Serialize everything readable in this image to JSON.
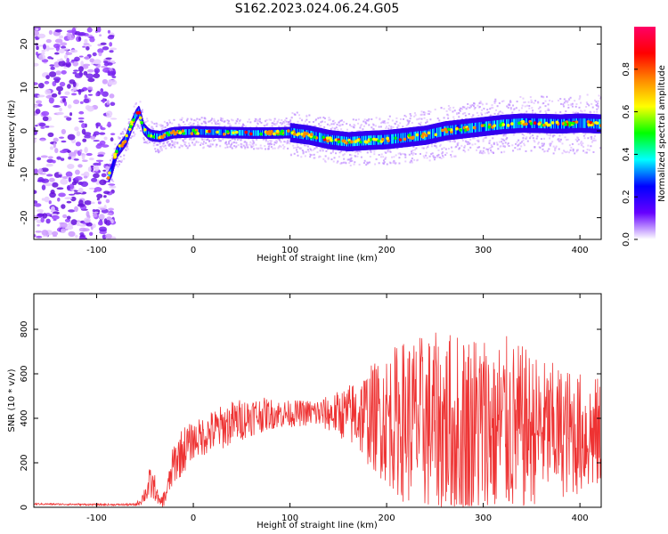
{
  "title": "S162.2023.024.06.24.G05",
  "chart_data": [
    {
      "type": "heatmap",
      "xlabel": "Height of straight line (km)",
      "ylabel": "Frequency (Hz)",
      "xlim": [
        -165,
        422
      ],
      "ylim": [
        -25,
        24
      ],
      "xticks": [
        -100,
        0,
        100,
        200,
        300,
        400
      ],
      "yticks": [
        -20,
        -10,
        0,
        10,
        20
      ],
      "colorbar": {
        "label": "Normalized spectral amplitude",
        "range": [
          0,
          1
        ],
        "ticks": [
          "0.0",
          "0.2",
          "0.4",
          "0.6",
          "0.8"
        ],
        "colormap": [
          "#ff0066",
          "#ff0000",
          "#ff8800",
          "#ffff00",
          "#00ff00",
          "#00ffff",
          "#0000ff",
          "#6600ff",
          "#ffffff"
        ]
      },
      "ridge": {
        "x": [
          -88,
          -85,
          -80,
          -75,
          -70,
          -65,
          -60,
          -57,
          -55,
          -52,
          -48,
          -45,
          -40,
          -35,
          -30,
          -25,
          -20,
          -10,
          0,
          20,
          40,
          60,
          80,
          100,
          120,
          140,
          160,
          180,
          200,
          220,
          240,
          260,
          280,
          300,
          320,
          340,
          360,
          380,
          400,
          420
        ],
        "y": [
          -10.5,
          -9,
          -5,
          -3.5,
          -2,
          1,
          3.5,
          4.5,
          3,
          0.5,
          -0.5,
          -1,
          -1.2,
          -1.3,
          -1,
          -0.6,
          -0.4,
          -0.3,
          -0.2,
          -0.3,
          -0.4,
          -0.5,
          -0.5,
          -0.4,
          -1,
          -2,
          -2.5,
          -2.2,
          -2,
          -1.5,
          -1,
          0,
          0.5,
          1,
          1.5,
          1.8,
          1.7,
          1.6,
          1.8,
          1.6
        ]
      }
    },
    {
      "type": "line",
      "xlabel": "Height of straight line (km)",
      "ylabel": "SNR (10 * v/v)",
      "xlim": [
        -165,
        422
      ],
      "ylim": [
        0,
        960
      ],
      "xticks": [
        -100,
        0,
        100,
        200,
        300,
        400
      ],
      "yticks": [
        0,
        200,
        400,
        600,
        800
      ],
      "color": "#ee3333",
      "envelope": {
        "x": [
          -165,
          -100,
          -60,
          -55,
          -50,
          -45,
          -40,
          -35,
          -30,
          -25,
          -20,
          -10,
          0,
          20,
          40,
          60,
          80,
          100,
          120,
          140,
          160,
          180,
          200,
          220,
          240,
          260,
          280,
          300,
          320,
          340,
          360,
          380,
          400,
          422
        ],
        "mean": [
          15,
          12,
          12,
          25,
          60,
          100,
          90,
          20,
          40,
          110,
          200,
          260,
          300,
          340,
          380,
          410,
          420,
          420,
          425,
          420,
          420,
          410,
          400,
          390,
          380,
          370,
          360,
          360,
          360,
          350,
          350,
          340,
          330,
          320
        ],
        "amp": [
          4,
          4,
          5,
          15,
          40,
          80,
          60,
          15,
          40,
          60,
          100,
          110,
          80,
          100,
          100,
          90,
          70,
          60,
          60,
          80,
          130,
          220,
          300,
          380,
          400,
          420,
          440,
          440,
          420,
          380,
          320,
          300,
          280,
          260
        ]
      }
    }
  ]
}
